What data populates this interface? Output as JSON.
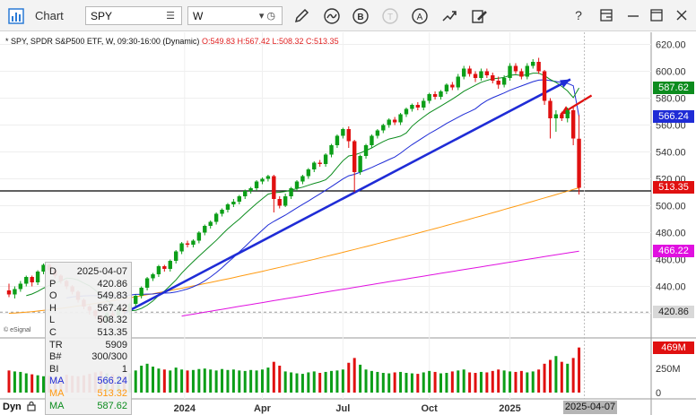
{
  "window": {
    "title": "Chart",
    "symbol_value": "SPY",
    "interval_value": "W",
    "toolbar_icons": [
      "pencil-icon",
      "squiggle-icon",
      "letter-b-icon",
      "letter-t-icon",
      "letter-a-icon",
      "transform-icon",
      "edit-note-icon"
    ],
    "window_icons": [
      "help-icon",
      "layout-icon",
      "minimize-icon",
      "maximize-icon",
      "close-icon"
    ],
    "help_glyph": "?",
    "bold_glyph": "B",
    "text_glyph": "T",
    "alert_glyph": "A"
  },
  "legend": {
    "prefix": "* SPY, SPDR S&P500 ETF, W, 09:30-16:00 (Dynamic)",
    "ohlc": "O:549.83 H:567.42 L:508.32 C:513.35"
  },
  "price_boxes": [
    {
      "label": "587.62",
      "price": 587.62,
      "color": "#0c8c1e"
    },
    {
      "label": "566.24",
      "price": 566.24,
      "color": "#1f2cd6"
    },
    {
      "label": "513.35",
      "price": 513.35,
      "color": "#e01010"
    },
    {
      "label": "466.22",
      "price": 466.22,
      "color": "#e010e0"
    },
    {
      "label": "420.86",
      "price": 420.86,
      "color": "#d8d8d8",
      "text_color": "#222"
    }
  ],
  "volume_box": {
    "label": "469M",
    "color": "#e01010"
  },
  "info_panel": {
    "rows": [
      {
        "k": "D",
        "v": "2025-04-07",
        "color": "#222"
      },
      {
        "k": "P",
        "v": "420.86",
        "color": "#222"
      },
      {
        "k": "O",
        "v": "549.83",
        "color": "#222"
      },
      {
        "k": "H",
        "v": "567.42",
        "color": "#222"
      },
      {
        "k": "L",
        "v": "508.32",
        "color": "#222"
      },
      {
        "k": "C",
        "v": "513.35",
        "color": "#222"
      },
      {
        "k": "TR",
        "v": "5909",
        "color": "#222"
      },
      {
        "k": "B#",
        "v": "300/300",
        "color": "#222"
      },
      {
        "k": "BI",
        "v": "1",
        "color": "#222"
      },
      {
        "k": "MA",
        "v": "566.24",
        "color": "#1f2cd6"
      },
      {
        "k": "MA",
        "v": "513.32",
        "color": "#ff9a10"
      },
      {
        "k": "MA",
        "v": "587.62",
        "color": "#0c8c1e"
      }
    ]
  },
  "misc": {
    "esignal": "© eSignal",
    "dyn": "Dyn",
    "date_cursor": "2025-04-07"
  },
  "chart_data": {
    "type": "candlestick",
    "y_axis": {
      "min": 405,
      "max": 625,
      "ticks": [
        420,
        440,
        460,
        480,
        500,
        520,
        540,
        560,
        580,
        600,
        620
      ]
    },
    "volume_axis": {
      "max": 550,
      "ticks": [
        {
          "value": 0,
          "label": "0"
        },
        {
          "value": 250,
          "label": "250M"
        }
      ]
    },
    "x_axis_labels": [
      {
        "i": 30.5,
        "label": "2024"
      },
      {
        "i": 44,
        "label": "Apr"
      },
      {
        "i": 58,
        "label": "Jul"
      },
      {
        "i": 73,
        "label": "Oct"
      },
      {
        "i": 87,
        "label": "2025"
      }
    ],
    "bar_count": 100,
    "candles": [
      [
        437,
        434,
        442,
        432
      ],
      [
        434,
        438,
        440,
        431
      ],
      [
        438,
        442,
        444,
        436
      ],
      [
        442,
        447,
        448,
        440
      ],
      [
        447,
        443,
        448,
        440
      ],
      [
        443,
        451,
        452,
        441
      ],
      [
        451,
        456,
        457,
        449
      ],
      [
        456,
        452,
        457,
        450
      ],
      [
        452,
        448,
        453,
        446
      ],
      [
        448,
        444,
        449,
        442
      ],
      [
        444,
        440,
        445,
        438
      ],
      [
        440,
        436,
        441,
        434
      ],
      [
        436,
        430,
        437,
        428
      ],
      [
        430,
        425,
        431,
        423
      ],
      [
        425,
        422,
        426,
        419
      ],
      [
        422,
        418,
        423,
        416
      ],
      [
        418,
        414,
        419,
        411
      ],
      [
        414,
        420,
        421,
        412
      ],
      [
        420,
        418,
        422,
        416
      ],
      [
        418,
        424,
        425,
        416
      ],
      [
        424,
        421,
        425,
        419
      ],
      [
        421,
        427,
        428,
        419
      ],
      [
        427,
        433,
        434,
        425
      ],
      [
        433,
        439,
        440,
        431
      ],
      [
        439,
        446,
        447,
        437
      ],
      [
        446,
        449,
        450,
        444
      ],
      [
        449,
        455,
        456,
        447
      ],
      [
        455,
        453,
        456,
        451
      ],
      [
        453,
        459,
        460,
        451
      ],
      [
        459,
        466,
        467,
        457
      ],
      [
        466,
        472,
        473,
        464
      ],
      [
        472,
        471,
        474,
        469
      ],
      [
        471,
        474,
        475,
        469
      ],
      [
        474,
        480,
        481,
        472
      ],
      [
        480,
        485,
        486,
        478
      ],
      [
        485,
        488,
        489,
        483
      ],
      [
        488,
        494,
        495,
        486
      ],
      [
        494,
        497,
        498,
        492
      ],
      [
        497,
        501,
        502,
        495
      ],
      [
        501,
        503,
        505,
        499
      ],
      [
        503,
        507,
        508,
        501
      ],
      [
        507,
        511,
        512,
        505
      ],
      [
        511,
        513,
        514,
        509
      ],
      [
        513,
        518,
        519,
        511
      ],
      [
        518,
        520,
        521,
        516
      ],
      [
        520,
        522,
        523,
        518
      ],
      [
        522,
        505,
        523,
        495
      ],
      [
        505,
        500,
        507,
        498
      ],
      [
        500,
        507,
        509,
        499
      ],
      [
        507,
        513,
        514,
        505
      ],
      [
        513,
        518,
        519,
        511
      ],
      [
        518,
        522,
        523,
        516
      ],
      [
        522,
        527,
        528,
        520
      ],
      [
        527,
        532,
        533,
        525
      ],
      [
        532,
        531,
        534,
        529
      ],
      [
        531,
        538,
        539,
        529
      ],
      [
        538,
        545,
        546,
        536
      ],
      [
        545,
        552,
        553,
        543
      ],
      [
        552,
        557,
        558,
        550
      ],
      [
        557,
        548,
        559,
        543
      ],
      [
        548,
        525,
        549,
        510
      ],
      [
        525,
        537,
        538,
        523
      ],
      [
        537,
        545,
        546,
        535
      ],
      [
        545,
        552,
        553,
        543
      ],
      [
        552,
        556,
        557,
        550
      ],
      [
        556,
        560,
        561,
        554
      ],
      [
        560,
        564,
        565,
        558
      ],
      [
        564,
        562,
        566,
        560
      ],
      [
        562,
        568,
        569,
        560
      ],
      [
        568,
        572,
        573,
        566
      ],
      [
        572,
        575,
        576,
        570
      ],
      [
        575,
        573,
        577,
        571
      ],
      [
        573,
        578,
        580,
        571
      ],
      [
        578,
        583,
        584,
        576
      ],
      [
        583,
        581,
        585,
        579
      ],
      [
        581,
        585,
        586,
        579
      ],
      [
        585,
        590,
        591,
        583
      ],
      [
        590,
        588,
        592,
        586
      ],
      [
        588,
        596,
        598,
        586
      ],
      [
        596,
        602,
        604,
        594
      ],
      [
        602,
        598,
        604,
        596
      ],
      [
        598,
        595,
        600,
        592
      ],
      [
        595,
        600,
        602,
        593
      ],
      [
        600,
        597,
        602,
        595
      ],
      [
        597,
        593,
        599,
        591
      ],
      [
        593,
        590,
        596,
        587
      ],
      [
        590,
        595,
        597,
        588
      ],
      [
        595,
        604,
        606,
        593
      ],
      [
        604,
        600,
        606,
        598
      ],
      [
        600,
        596,
        602,
        594
      ],
      [
        596,
        604,
        606,
        594
      ],
      [
        604,
        607,
        609,
        602
      ],
      [
        607,
        600,
        610,
        598
      ],
      [
        600,
        578,
        601,
        575
      ],
      [
        578,
        565,
        580,
        550
      ],
      [
        565,
        568,
        571,
        555
      ],
      [
        568,
        565,
        570,
        563
      ],
      [
        565,
        571,
        573,
        562
      ],
      [
        571,
        550,
        573,
        545
      ],
      [
        549.83,
        513.35,
        567.42,
        508.32
      ]
    ],
    "volumes": [
      230,
      220,
      215,
      200,
      190,
      180,
      170,
      175,
      165,
      160,
      185,
      175,
      170,
      180,
      195,
      210,
      220,
      200,
      190,
      180,
      175,
      200,
      230,
      280,
      300,
      270,
      250,
      240,
      230,
      260,
      240,
      230,
      235,
      245,
      250,
      240,
      230,
      245,
      235,
      240,
      230,
      225,
      235,
      230,
      240,
      260,
      320,
      280,
      220,
      210,
      200,
      195,
      210,
      220,
      205,
      215,
      225,
      230,
      240,
      310,
      360,
      290,
      240,
      225,
      215,
      205,
      200,
      210,
      215,
      205,
      200,
      195,
      210,
      225,
      215,
      200,
      205,
      220,
      230,
      240,
      210,
      205,
      215,
      210,
      225,
      240,
      230,
      220,
      215,
      225,
      210,
      220,
      240,
      300,
      340,
      380,
      320,
      300,
      360,
      469
    ],
    "ma_lines": [
      {
        "name": "MA",
        "color": "#0c8c1e",
        "last": 587.62
      },
      {
        "name": "MA",
        "color": "#1f2cd6",
        "last": 566.24
      },
      {
        "name": "MA",
        "color": "#ff9a10",
        "last": 513.32
      },
      {
        "name": "MA",
        "color": "#e010e0",
        "last": 466.22
      }
    ],
    "horizontal_lines": [
      {
        "price": 420.86,
        "style": "dashed",
        "color": "#999999"
      },
      {
        "price": 511,
        "style": "solid",
        "color": "#000000"
      }
    ],
    "trendline": {
      "from": {
        "i": 20,
        "price": 420
      },
      "to": {
        "i": 97.5,
        "price": 594
      },
      "color": "#1f2cd6"
    },
    "arrow": {
      "tail": {
        "i": 99,
        "price": 582
      },
      "head": {
        "i": 95.5,
        "price": 568
      },
      "color": "#e01010"
    }
  }
}
